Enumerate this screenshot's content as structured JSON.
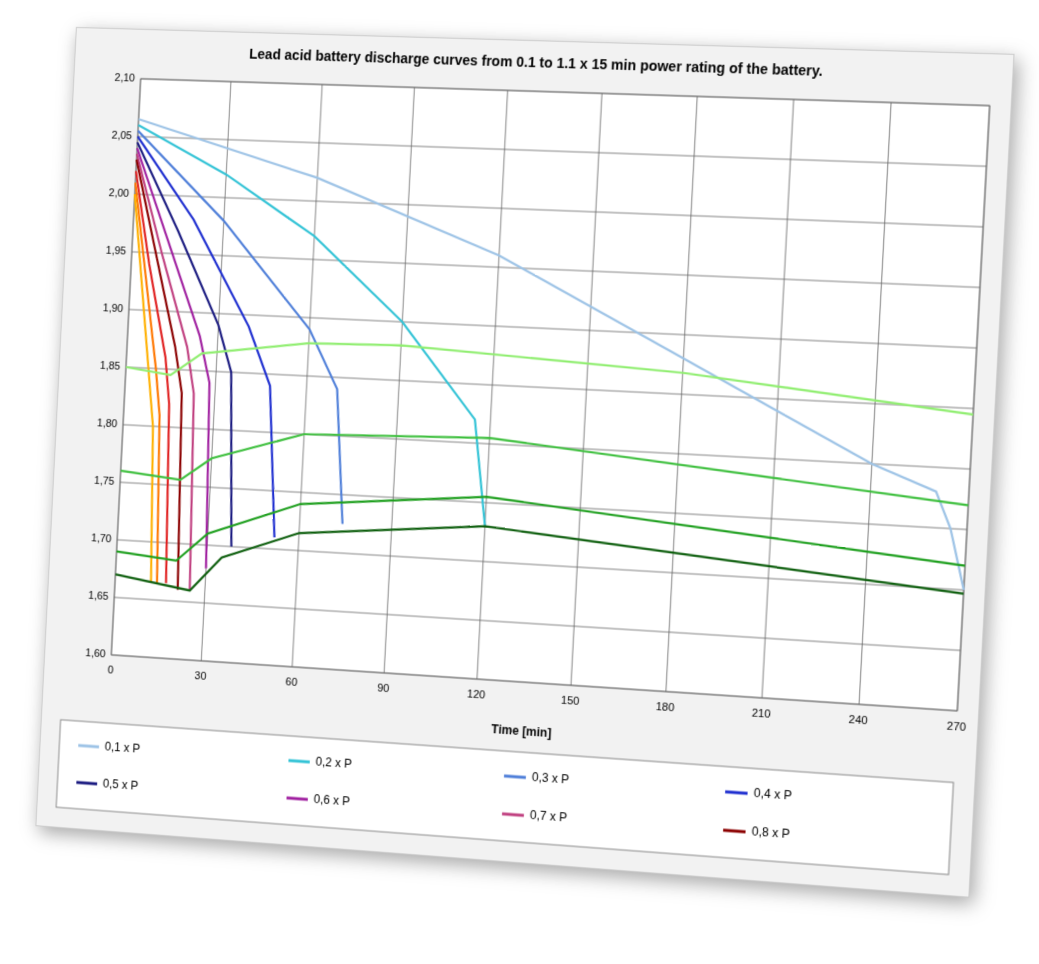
{
  "chart_data": {
    "type": "line",
    "title": "Lead acid battery discharge curves from 0.1 to 1.1 x 15 min power rating of the battery.",
    "x_label": "Time [min]",
    "xlim": [
      0,
      270
    ],
    "xticks": [
      0,
      30,
      60,
      90,
      120,
      150,
      180,
      210,
      240,
      270
    ],
    "ylim": [
      1.6,
      2.1
    ],
    "yticks": [
      {
        "value": 1.6,
        "label": "1,60"
      },
      {
        "value": 1.65,
        "label": "1,65"
      },
      {
        "value": 1.7,
        "label": "1,70"
      },
      {
        "value": 1.75,
        "label": "1,75"
      },
      {
        "value": 1.8,
        "label": "1,80"
      },
      {
        "value": 1.85,
        "label": "1,85"
      },
      {
        "value": 1.9,
        "label": "1,90"
      },
      {
        "value": 1.95,
        "label": "1,95"
      },
      {
        "value": 2.0,
        "label": "2,00"
      },
      {
        "value": 2.05,
        "label": "2,05"
      },
      {
        "value": 2.1,
        "label": "2,10"
      }
    ],
    "grid": true,
    "series": [
      {
        "name": "0,1 x P",
        "color": "#9dc3e6",
        "x": [
          0,
          60,
          120,
          180,
          240,
          260,
          265,
          270
        ],
        "values": [
          2.065,
          2.02,
          1.96,
          1.88,
          1.8,
          1.78,
          1.75,
          1.7
        ]
      },
      {
        "name": "0,2 x P",
        "color": "#33c3d6",
        "x": [
          0,
          30,
          60,
          90,
          115,
          120
        ],
        "values": [
          2.06,
          2.02,
          1.97,
          1.9,
          1.82,
          1.73
        ]
      },
      {
        "name": "0,3 x P",
        "color": "#4f7fd9",
        "x": [
          0,
          30,
          60,
          70,
          74
        ],
        "values": [
          2.055,
          1.98,
          1.89,
          1.84,
          1.725
        ]
      },
      {
        "name": "0,4 x P",
        "color": "#1f2fd0",
        "x": [
          0,
          20,
          40,
          48,
          52
        ],
        "values": [
          2.05,
          1.98,
          1.89,
          1.84,
          1.71
        ]
      },
      {
        "name": "0,5 x P",
        "color": "#1a1a80",
        "x": [
          0,
          15,
          30,
          35,
          38
        ],
        "values": [
          2.045,
          1.97,
          1.89,
          1.85,
          1.7
        ]
      },
      {
        "name": "0,6 x P",
        "color": "#a020a0",
        "x": [
          0,
          12,
          24,
          28,
          30
        ],
        "values": [
          2.04,
          1.96,
          1.88,
          1.84,
          1.68
        ]
      },
      {
        "name": "0,7 x P",
        "color": "#c04080",
        "x": [
          0,
          10,
          20,
          23,
          25
        ],
        "values": [
          2.035,
          1.95,
          1.87,
          1.83,
          1.66
        ]
      },
      {
        "name": "0,8 x P",
        "color": "#8b0000",
        "x": [
          0,
          8,
          16,
          19,
          21
        ],
        "values": [
          2.03,
          1.95,
          1.87,
          1.83,
          1.66
        ]
      },
      {
        "color": "#e02020",
        "x": [
          0,
          6,
          13,
          15,
          17
        ],
        "values": [
          2.02,
          1.94,
          1.86,
          1.82,
          1.665
        ]
      },
      {
        "color": "#ff7700",
        "x": [
          0,
          5,
          10,
          12,
          14
        ],
        "values": [
          2.01,
          1.93,
          1.85,
          1.81,
          1.665
        ]
      },
      {
        "color": "#ffb000",
        "x": [
          0,
          4,
          8,
          10,
          12
        ],
        "values": [
          2.0,
          1.92,
          1.84,
          1.8,
          1.665
        ]
      },
      {
        "color": "#90ee70",
        "x": [
          0,
          15,
          25,
          60,
          90,
          180,
          270
        ],
        "values": [
          1.85,
          1.845,
          1.865,
          1.878,
          1.88,
          1.868,
          1.845
        ]
      },
      {
        "color": "#40c040",
        "x": [
          0,
          20,
          30,
          60,
          120,
          270
        ],
        "values": [
          1.76,
          1.755,
          1.775,
          1.8,
          1.805,
          1.77
        ]
      },
      {
        "color": "#20a020",
        "x": [
          0,
          20,
          30,
          60,
          120,
          270
        ],
        "values": [
          1.69,
          1.685,
          1.71,
          1.74,
          1.755,
          1.72
        ]
      },
      {
        "color": "#106010",
        "x": [
          0,
          25,
          35,
          60,
          120,
          270
        ],
        "values": [
          1.67,
          1.66,
          1.69,
          1.715,
          1.73,
          1.697
        ]
      }
    ]
  }
}
